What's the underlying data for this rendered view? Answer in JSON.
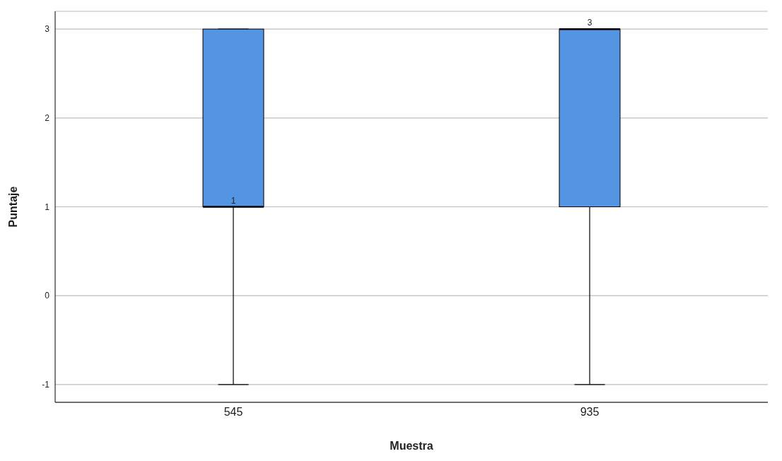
{
  "chart_data": {
    "type": "box",
    "xlabel": "Muestra",
    "ylabel": "Puntaje",
    "categories": [
      "545",
      "935"
    ],
    "boxes": [
      {
        "low": -1,
        "q1": 1,
        "median": 1,
        "q3": 3,
        "high": 3
      },
      {
        "low": -1,
        "q1": 1,
        "median": 3,
        "q3": 3,
        "high": 3
      }
    ],
    "color": "#5394e3",
    "ylim": [
      -1.2,
      3.2
    ],
    "yticks": [
      -1,
      0,
      1,
      2,
      3
    ],
    "grid": "y",
    "annotations": [
      {
        "text": "1",
        "x": "545",
        "y": 1
      },
      {
        "text": "3",
        "x": "935",
        "y": 3
      }
    ]
  }
}
